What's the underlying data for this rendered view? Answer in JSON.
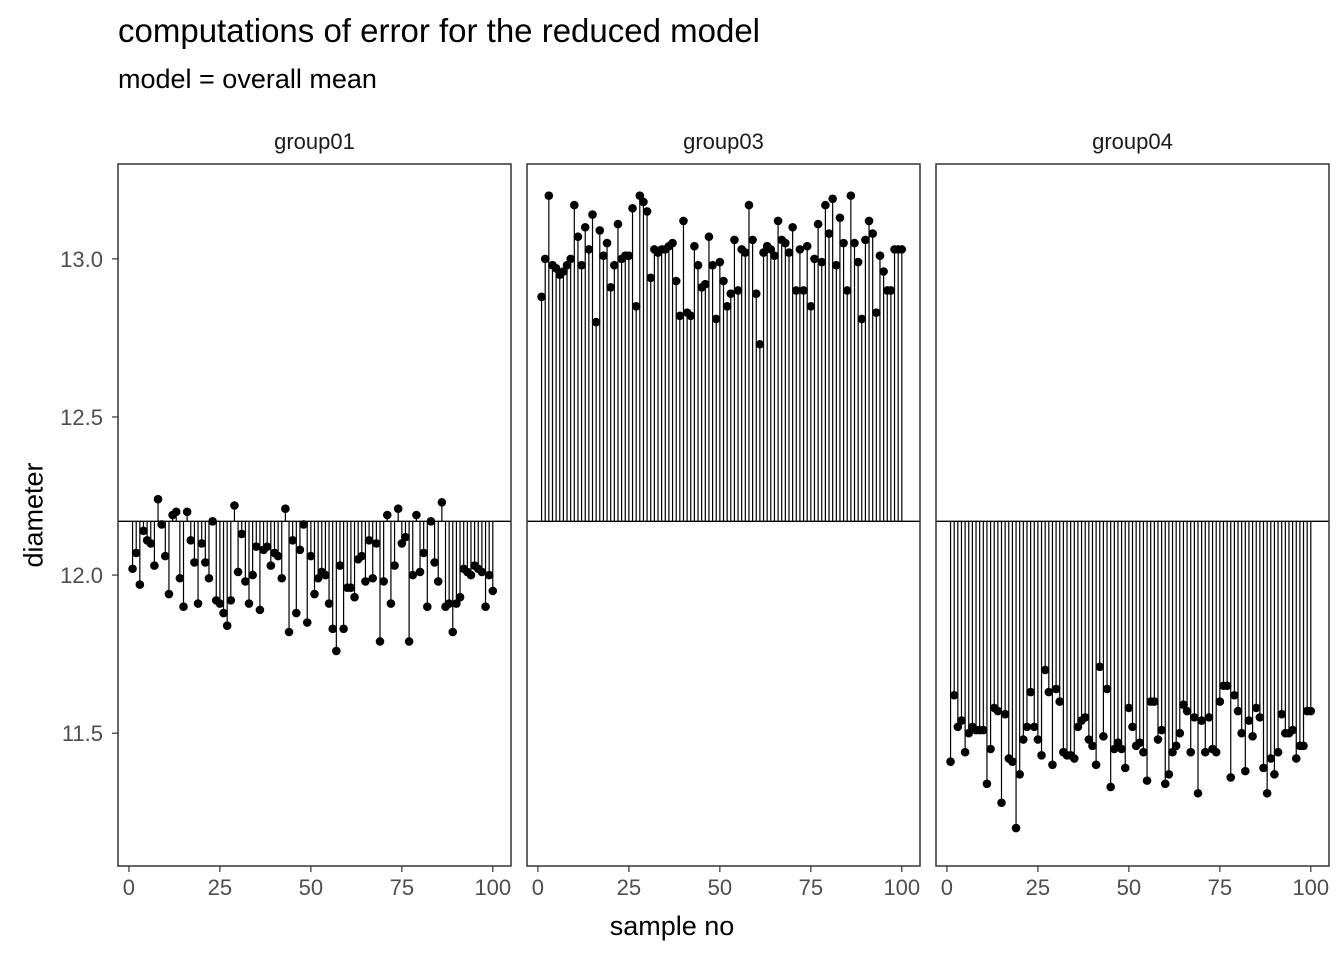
{
  "title": "computations of error for the reduced model",
  "subtitle": "model = overall mean",
  "chart_data": {
    "type": "scatter",
    "title": "computations of error for the reduced model",
    "subtitle": "model = overall mean",
    "xlabel": "sample no",
    "ylabel": "diameter",
    "xlim": [
      -3,
      105
    ],
    "ylim": [
      11.08,
      13.3
    ],
    "x_ticks": [
      0,
      25,
      50,
      75,
      100
    ],
    "x_tick_labels": [
      "0",
      "25",
      "50",
      "75",
      "100"
    ],
    "y_ticks": [
      11.5,
      12.0,
      12.5,
      13.0
    ],
    "y_tick_labels": [
      "11.5",
      "12.0",
      "12.5",
      "13.0"
    ],
    "overall_mean": 12.17,
    "grid": false,
    "point_color": "#000000",
    "panels": [
      {
        "name": "group01",
        "x": [
          1,
          2,
          3,
          4,
          5,
          6,
          7,
          8,
          9,
          10,
          11,
          12,
          13,
          14,
          15,
          16,
          17,
          18,
          19,
          20,
          21,
          22,
          23,
          24,
          25,
          26,
          27,
          28,
          29,
          30,
          31,
          32,
          33,
          34,
          35,
          36,
          37,
          38,
          39,
          40,
          41,
          42,
          43,
          44,
          45,
          46,
          47,
          48,
          49,
          50,
          51,
          52,
          53,
          54,
          55,
          56,
          57,
          58,
          59,
          60,
          61,
          62,
          63,
          64,
          65,
          66,
          67,
          68,
          69,
          70,
          71,
          72,
          73,
          74,
          75,
          76,
          77,
          78,
          79,
          80,
          81,
          82,
          83,
          84,
          85,
          86,
          87,
          88,
          89,
          90,
          91,
          92,
          93,
          94,
          95,
          96,
          97,
          98,
          99,
          100
        ],
        "y": [
          12.02,
          12.07,
          11.97,
          12.14,
          12.11,
          12.1,
          12.03,
          12.24,
          12.16,
          12.06,
          11.94,
          12.19,
          12.2,
          11.99,
          11.9,
          12.2,
          12.11,
          12.04,
          11.91,
          12.1,
          12.04,
          11.99,
          12.17,
          11.92,
          11.91,
          11.88,
          11.84,
          11.92,
          12.22,
          12.01,
          12.13,
          11.98,
          11.91,
          12.0,
          12.09,
          11.89,
          12.08,
          12.09,
          12.03,
          12.07,
          12.06,
          11.99,
          12.21,
          11.82,
          12.11,
          11.88,
          12.08,
          12.16,
          11.85,
          12.06,
          11.94,
          11.99,
          12.01,
          12.0,
          11.91,
          11.83,
          11.76,
          12.03,
          11.83,
          11.96,
          11.96,
          11.93,
          12.05,
          12.06,
          11.98,
          12.11,
          11.99,
          12.1,
          11.79,
          11.98,
          12.19,
          11.91,
          12.03,
          12.21,
          12.1,
          12.12,
          11.79,
          12.0,
          12.19,
          12.01,
          12.07,
          11.9,
          12.17,
          12.04,
          11.98,
          12.23,
          11.9,
          11.91,
          11.82,
          11.91,
          11.93,
          12.02,
          12.01,
          12.0,
          12.03,
          12.02,
          12.01,
          11.9,
          12.0,
          11.95
        ]
      },
      {
        "name": "group03",
        "x": [
          1,
          2,
          3,
          4,
          5,
          6,
          7,
          8,
          9,
          10,
          11,
          12,
          13,
          14,
          15,
          16,
          17,
          18,
          19,
          20,
          21,
          22,
          23,
          24,
          25,
          26,
          27,
          28,
          29,
          30,
          31,
          32,
          33,
          34,
          35,
          36,
          37,
          38,
          39,
          40,
          41,
          42,
          43,
          44,
          45,
          46,
          47,
          48,
          49,
          50,
          51,
          52,
          53,
          54,
          55,
          56,
          57,
          58,
          59,
          60,
          61,
          62,
          63,
          64,
          65,
          66,
          67,
          68,
          69,
          70,
          71,
          72,
          73,
          74,
          75,
          76,
          77,
          78,
          79,
          80,
          81,
          82,
          83,
          84,
          85,
          86,
          87,
          88,
          89,
          90,
          91,
          92,
          93,
          94,
          95,
          96,
          97,
          98,
          99,
          100
        ],
        "y": [
          12.88,
          13.0,
          13.2,
          12.98,
          12.97,
          12.95,
          12.96,
          12.98,
          13.0,
          13.17,
          13.07,
          12.98,
          13.1,
          13.03,
          13.14,
          12.8,
          13.09,
          13.01,
          13.05,
          12.91,
          12.98,
          13.11,
          13.0,
          13.01,
          13.01,
          13.16,
          12.85,
          13.2,
          13.18,
          13.15,
          12.94,
          13.03,
          13.02,
          13.03,
          13.03,
          13.04,
          13.05,
          12.93,
          12.82,
          13.12,
          12.83,
          12.82,
          13.04,
          12.98,
          12.91,
          12.92,
          13.07,
          12.98,
          12.81,
          12.99,
          12.93,
          12.85,
          12.89,
          13.06,
          12.9,
          13.03,
          13.02,
          13.17,
          13.06,
          12.89,
          12.73,
          13.02,
          13.04,
          13.03,
          13.01,
          13.12,
          13.06,
          13.05,
          13.02,
          13.1,
          12.9,
          13.03,
          12.9,
          13.04,
          12.85,
          13.0,
          13.11,
          12.99,
          13.17,
          13.08,
          13.19,
          12.98,
          13.13,
          13.05,
          12.9,
          13.2,
          13.05,
          12.99,
          12.81,
          13.06,
          13.12,
          13.08,
          12.83,
          13.01,
          12.96,
          12.9,
          12.9,
          13.03,
          13.03,
          13.03
        ]
      },
      {
        "name": "group04",
        "x": [
          1,
          2,
          3,
          4,
          5,
          6,
          7,
          8,
          9,
          10,
          11,
          12,
          13,
          14,
          15,
          16,
          17,
          18,
          19,
          20,
          21,
          22,
          23,
          24,
          25,
          26,
          27,
          28,
          29,
          30,
          31,
          32,
          33,
          34,
          35,
          36,
          37,
          38,
          39,
          40,
          41,
          42,
          43,
          44,
          45,
          46,
          47,
          48,
          49,
          50,
          51,
          52,
          53,
          54,
          55,
          56,
          57,
          58,
          59,
          60,
          61,
          62,
          63,
          64,
          65,
          66,
          67,
          68,
          69,
          70,
          71,
          72,
          73,
          74,
          75,
          76,
          77,
          78,
          79,
          80,
          81,
          82,
          83,
          84,
          85,
          86,
          87,
          88,
          89,
          90,
          91,
          92,
          93,
          94,
          95,
          96,
          97,
          98,
          99,
          100
        ],
        "y": [
          11.41,
          11.62,
          11.52,
          11.54,
          11.44,
          11.5,
          11.52,
          11.51,
          11.51,
          11.51,
          11.34,
          11.45,
          11.58,
          11.57,
          11.28,
          11.56,
          11.42,
          11.41,
          11.2,
          11.37,
          11.48,
          11.52,
          11.63,
          11.52,
          11.48,
          11.43,
          11.7,
          11.63,
          11.4,
          11.64,
          11.6,
          11.44,
          11.43,
          11.43,
          11.42,
          11.52,
          11.54,
          11.55,
          11.48,
          11.46,
          11.4,
          11.71,
          11.49,
          11.64,
          11.33,
          11.45,
          11.47,
          11.45,
          11.39,
          11.58,
          11.52,
          11.46,
          11.47,
          11.44,
          11.35,
          11.6,
          11.6,
          11.48,
          11.51,
          11.34,
          11.37,
          11.44,
          11.46,
          11.5,
          11.59,
          11.57,
          11.44,
          11.55,
          11.31,
          11.54,
          11.44,
          11.55,
          11.45,
          11.44,
          11.6,
          11.65,
          11.65,
          11.36,
          11.62,
          11.57,
          11.5,
          11.38,
          11.54,
          11.49,
          11.58,
          11.55,
          11.39,
          11.31,
          11.42,
          11.37,
          11.44,
          11.56,
          11.5,
          11.5,
          11.51,
          11.42,
          11.46,
          11.46,
          11.57,
          11.57
        ]
      }
    ]
  }
}
